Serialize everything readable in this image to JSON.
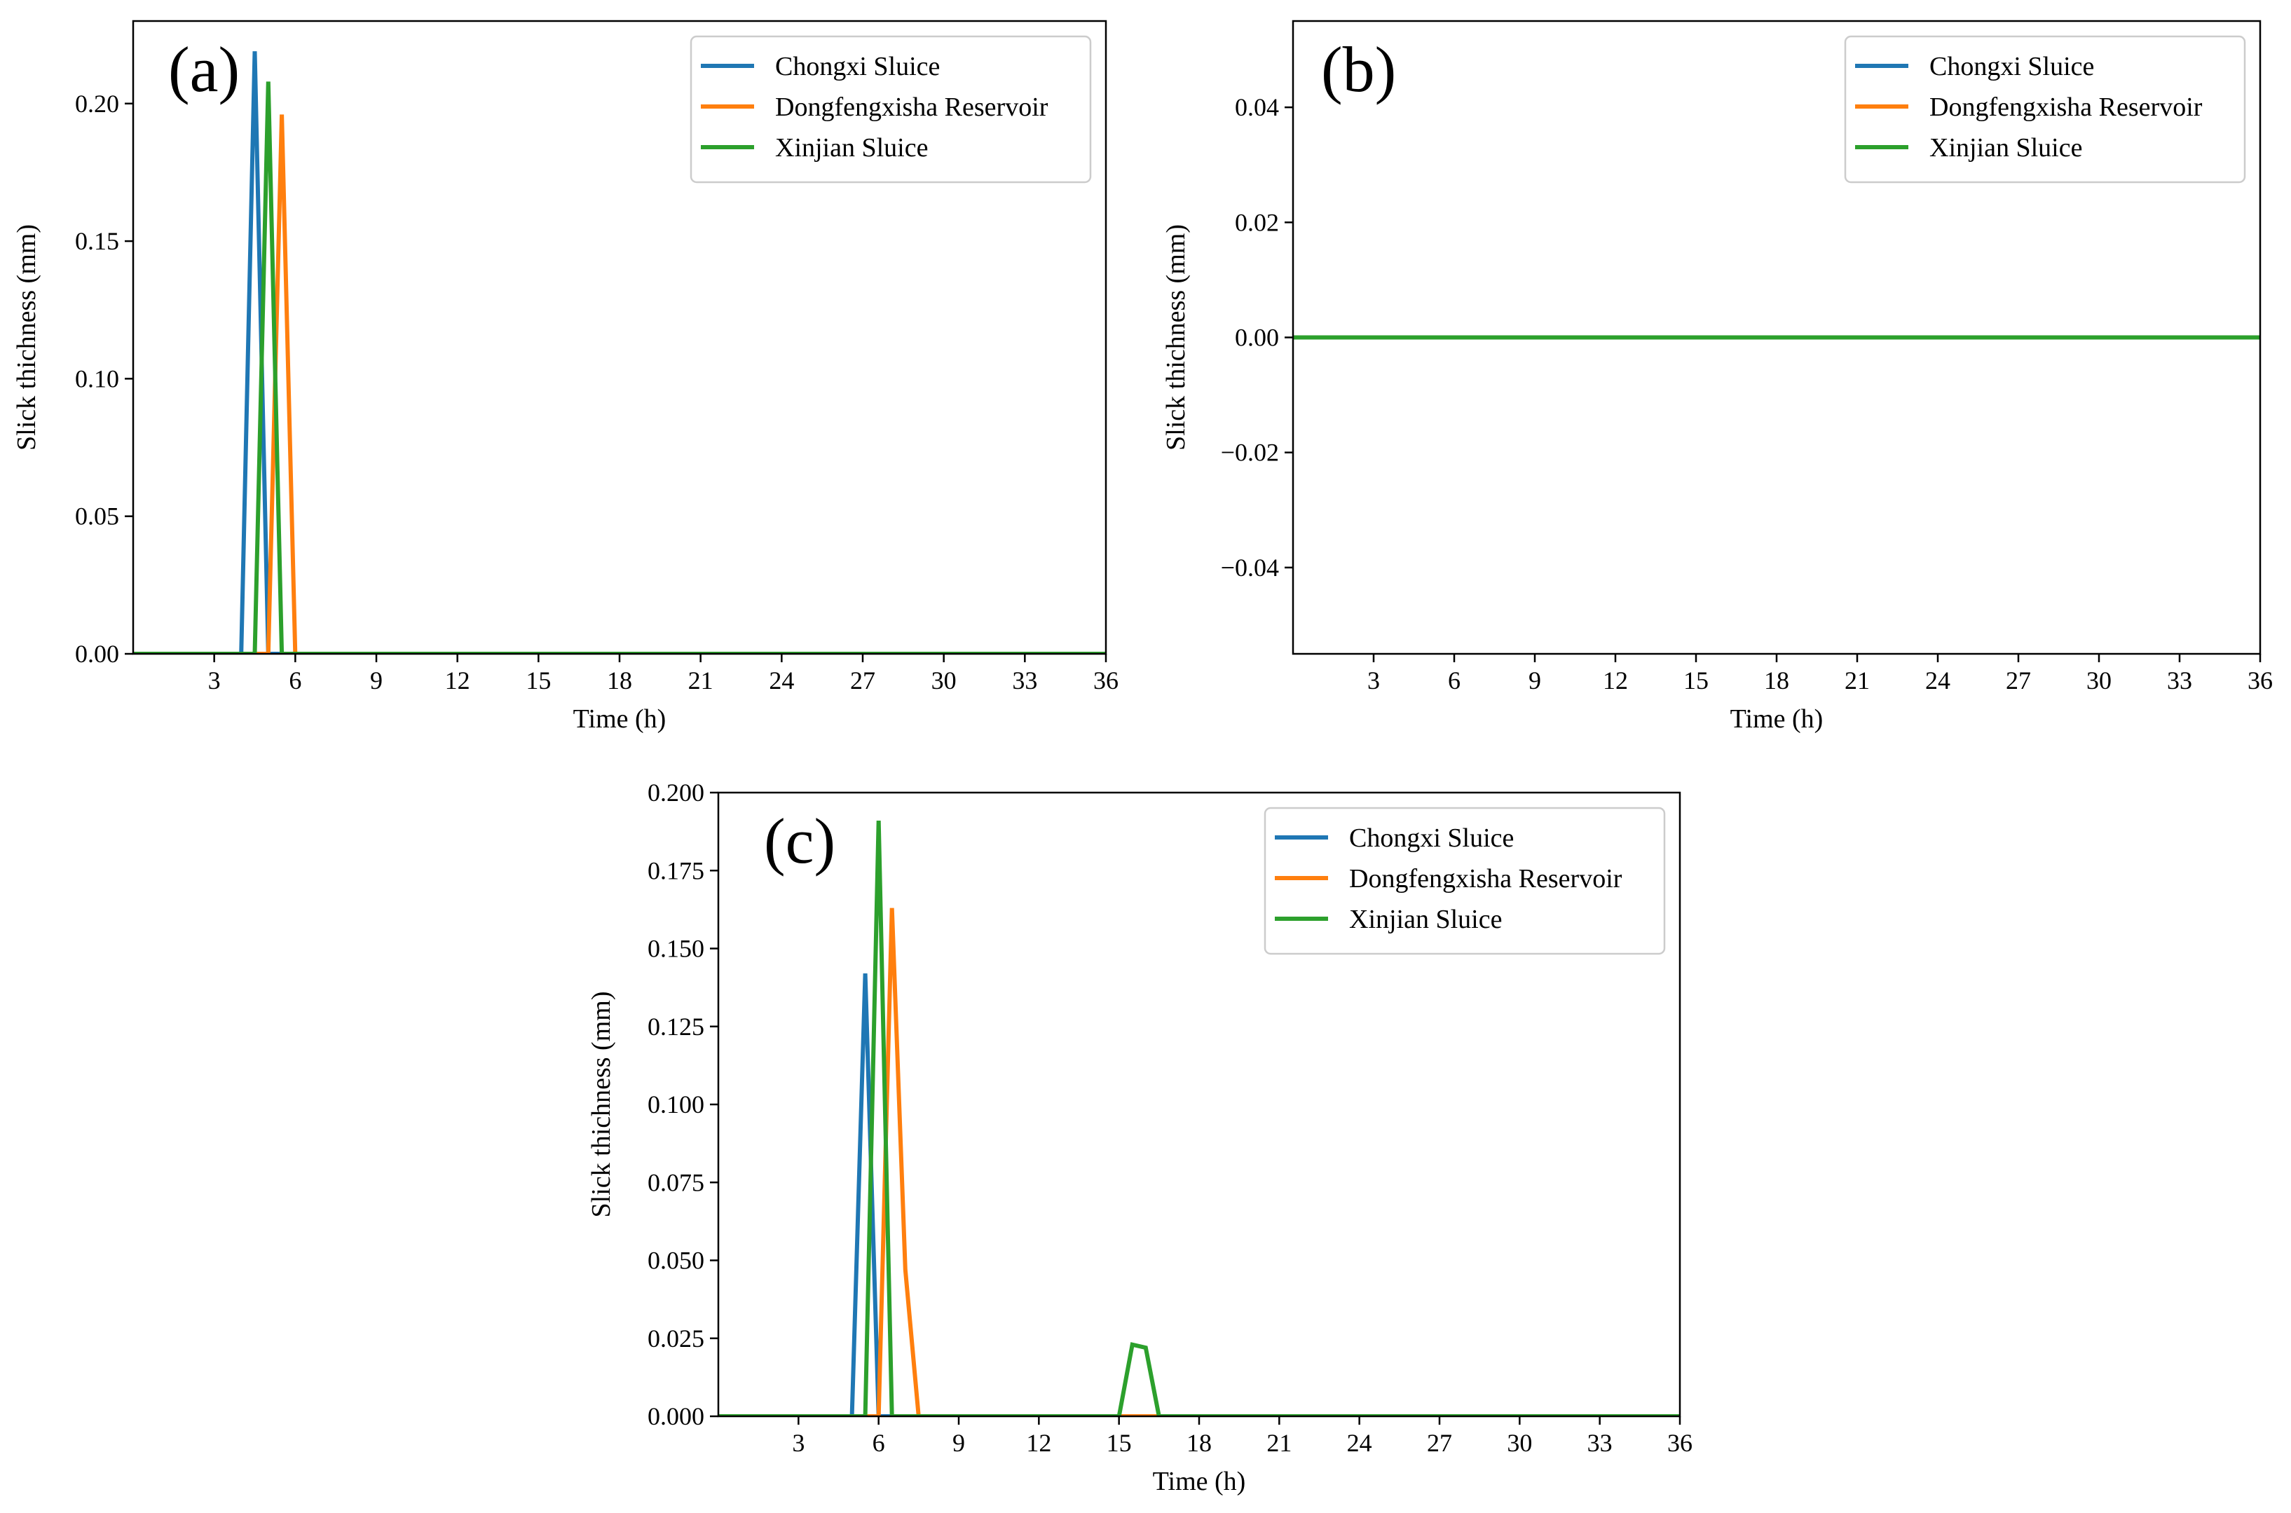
{
  "figure": {
    "colors": {
      "blue": "#1f77b4",
      "orange": "#ff7f0e",
      "green": "#2ca02c"
    }
  },
  "chart_data": [
    {
      "type": "line",
      "panel_label": "(a)",
      "xlabel": "Time (h)",
      "ylabel": "Slick thichness (mm)",
      "xlim": [
        0,
        36
      ],
      "ylim": [
        0,
        0.23
      ],
      "xticks": [
        3,
        6,
        9,
        12,
        15,
        18,
        21,
        24,
        27,
        30,
        33,
        36
      ],
      "xtick_labels": [
        "3",
        "6",
        "9",
        "12",
        "15",
        "18",
        "21",
        "24",
        "27",
        "30",
        "33",
        "36"
      ],
      "yticks": [
        0,
        0.05,
        0.1,
        0.15,
        0.2
      ],
      "ytick_labels": [
        "0.00",
        "0.05",
        "0.10",
        "0.15",
        "0.20"
      ],
      "legend_position": "top-right",
      "series": [
        {
          "name": "Chongxi Sluice",
          "color": "#1f77b4",
          "x": [
            0,
            4.0,
            4.5,
            5.0,
            36
          ],
          "y": [
            0,
            0,
            0.219,
            0,
            0
          ]
        },
        {
          "name": "Dongfengxisha Reservoir",
          "color": "#ff7f0e",
          "x": [
            0,
            5.0,
            5.5,
            6.0,
            36
          ],
          "y": [
            0,
            0,
            0.196,
            0,
            0
          ]
        },
        {
          "name": "Xinjian Sluice",
          "color": "#2ca02c",
          "x": [
            0,
            4.5,
            5.0,
            5.5,
            36
          ],
          "y": [
            0,
            0,
            0.208,
            0,
            0
          ]
        }
      ]
    },
    {
      "type": "line",
      "panel_label": "(b)",
      "xlabel": "Time (h)",
      "ylabel": "Slick thichness (mm)",
      "xlim": [
        0,
        36
      ],
      "ylim": [
        -0.055,
        0.055
      ],
      "xticks": [
        3,
        6,
        9,
        12,
        15,
        18,
        21,
        24,
        27,
        30,
        33,
        36
      ],
      "xtick_labels": [
        "3",
        "6",
        "9",
        "12",
        "15",
        "18",
        "21",
        "24",
        "27",
        "30",
        "33",
        "36"
      ],
      "yticks": [
        -0.04,
        -0.02,
        0,
        0.02,
        0.04
      ],
      "ytick_labels": [
        "−0.04",
        "−0.02",
        "0.00",
        "0.02",
        "0.04"
      ],
      "legend_position": "top-right",
      "series": [
        {
          "name": "Chongxi Sluice",
          "color": "#1f77b4",
          "x": [
            0,
            36
          ],
          "y": [
            0,
            0
          ]
        },
        {
          "name": "Dongfengxisha Reservoir",
          "color": "#ff7f0e",
          "x": [
            0,
            36
          ],
          "y": [
            0,
            0
          ]
        },
        {
          "name": "Xinjian Sluice",
          "color": "#2ca02c",
          "x": [
            0,
            36
          ],
          "y": [
            0,
            0
          ]
        }
      ]
    },
    {
      "type": "line",
      "panel_label": "(c)",
      "xlabel": "Time (h)",
      "ylabel": "Slick thichness (mm)",
      "xlim": [
        0,
        36
      ],
      "ylim": [
        0,
        0.2
      ],
      "xticks": [
        3,
        6,
        9,
        12,
        15,
        18,
        21,
        24,
        27,
        30,
        33,
        36
      ],
      "xtick_labels": [
        "3",
        "6",
        "9",
        "12",
        "15",
        "18",
        "21",
        "24",
        "27",
        "30",
        "33",
        "36"
      ],
      "yticks": [
        0,
        0.025,
        0.05,
        0.075,
        0.1,
        0.125,
        0.15,
        0.175,
        0.2
      ],
      "ytick_labels": [
        "0.000",
        "0.025",
        "0.050",
        "0.075",
        "0.100",
        "0.125",
        "0.150",
        "0.175",
        "0.200"
      ],
      "legend_position": "top-right",
      "series": [
        {
          "name": "Chongxi Sluice",
          "color": "#1f77b4",
          "x": [
            0,
            5.0,
            5.5,
            6.0,
            36
          ],
          "y": [
            0,
            0,
            0.142,
            0,
            0
          ]
        },
        {
          "name": "Dongfengxisha Reservoir",
          "color": "#ff7f0e",
          "x": [
            0,
            6.0,
            6.5,
            7.0,
            7.5,
            36
          ],
          "y": [
            0,
            0,
            0.163,
            0.047,
            0,
            0
          ]
        },
        {
          "name": "Xinjian Sluice",
          "color": "#2ca02c",
          "x": [
            0,
            5.5,
            6.0,
            6.5,
            15.0,
            15.5,
            16.0,
            16.5,
            36
          ],
          "y": [
            0,
            0,
            0.191,
            0,
            0,
            0.023,
            0.022,
            0,
            0
          ]
        }
      ]
    }
  ]
}
